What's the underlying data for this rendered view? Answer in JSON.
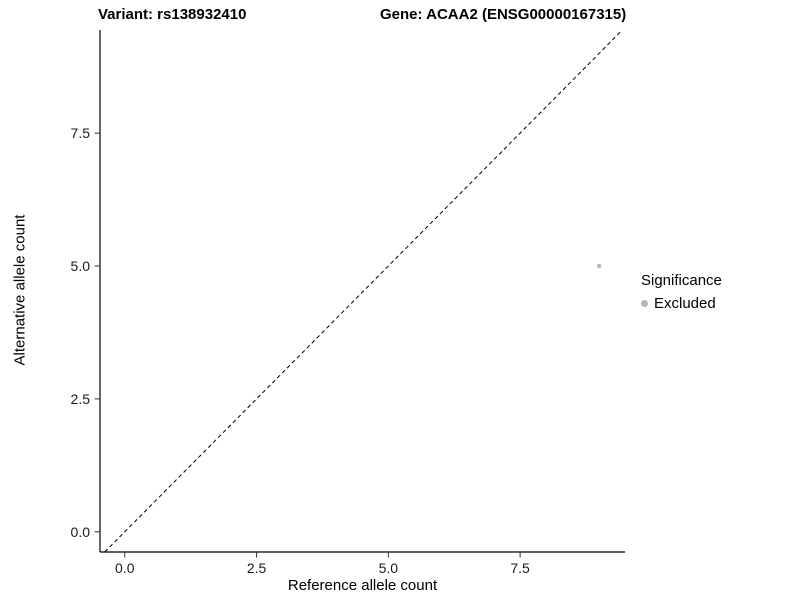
{
  "chart_data": {
    "type": "scatter",
    "title_left": "Variant: rs138932410",
    "title_right": "Gene: ACAA2 (ENSG00000167315)",
    "xlabel": "Reference allele count",
    "ylabel": "Alternative allele count",
    "xlim": [
      -0.47,
      9.49
    ],
    "ylim": [
      -0.38,
      9.44
    ],
    "xtick_values": [
      0.0,
      2.5,
      5.0,
      7.5
    ],
    "xtick_labels": [
      "0.0",
      "2.5",
      "5.0",
      "7.5"
    ],
    "ytick_values": [
      0.0,
      2.5,
      5.0,
      7.5
    ],
    "ytick_labels": [
      "0.0",
      "2.5",
      "5.0",
      "7.5"
    ],
    "grid": false,
    "points": [
      {
        "x": 9,
        "y": 5,
        "series": "Excluded"
      }
    ],
    "reference_line": {
      "type": "identity",
      "slope": 1,
      "intercept": 0,
      "style": "dashed",
      "color": "#000000"
    },
    "point_color": "#b5b5b5",
    "axis_color": "#000000",
    "legend_position": "right",
    "legend": {
      "title": "Significance",
      "entries": [
        {
          "label": "Excluded",
          "color": "#b5b5b5"
        }
      ]
    }
  }
}
